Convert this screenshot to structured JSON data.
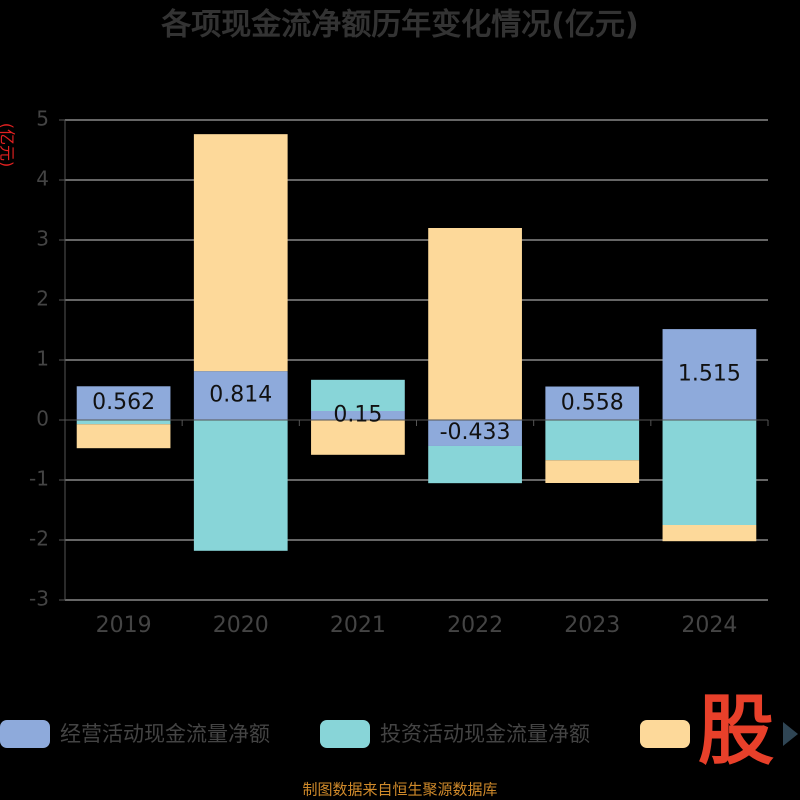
{
  "chart_data": {
    "type": "bar",
    "stacked": true,
    "title": "各项现金流净额历年变化情况(亿元)",
    "y_label": "(亿元)",
    "categories": [
      "2019",
      "2020",
      "2021",
      "2022",
      "2023",
      "2024"
    ],
    "series": [
      {
        "name": "经营活动现金流量净额",
        "color": "#8eaadb",
        "values": [
          0.562,
          0.814,
          0.15,
          -0.433,
          0.558,
          1.515
        ],
        "show_labels": true
      },
      {
        "name": "投资活动现金流量净额",
        "color": "#88d5d8",
        "values": [
          -0.07,
          -2.18,
          0.52,
          -0.62,
          -0.67,
          -1.75
        ]
      },
      {
        "color": "#fdd99a",
        "values": [
          -0.4,
          3.95,
          -0.58,
          3.2,
          -0.38,
          -0.27
        ]
      }
    ],
    "ylim": [
      -3,
      5
    ],
    "yticks": [
      -3,
      -2,
      -1,
      0,
      1,
      2,
      3,
      4,
      5
    ],
    "grid": true,
    "source": "制图数据来自恒生聚源数据库",
    "logo": "股"
  }
}
